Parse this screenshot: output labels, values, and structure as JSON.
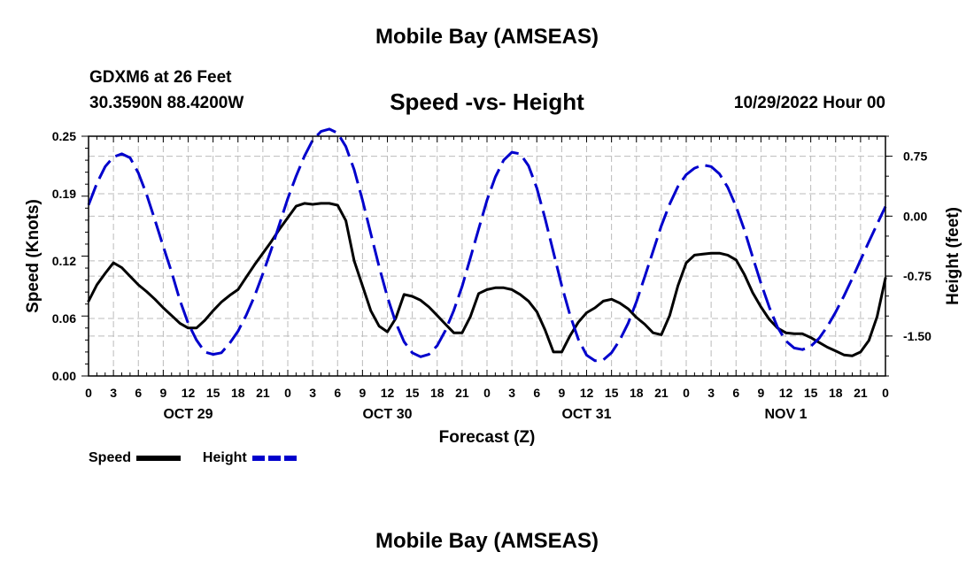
{
  "header": {
    "title": "Mobile Bay (AMSEAS)",
    "station": "GDXM6 at 26 Feet",
    "coords": "30.3590N  88.4200W",
    "subtitle": "Speed -vs- Height",
    "datetime": "10/29/2022 Hour 00"
  },
  "footer": {
    "title": "Mobile Bay (AMSEAS)"
  },
  "legend": {
    "speed_label": "Speed",
    "height_label": "Height"
  },
  "chart_data": {
    "type": "line",
    "title": "Speed -vs- Height",
    "xlabel": "Forecast (Z)",
    "ylabel": "Speed (Knots)",
    "y2label": "Height (feet)",
    "xlim": [
      0,
      96
    ],
    "ylim": [
      0,
      0.25
    ],
    "y2lim": [
      -2.0,
      1.0
    ],
    "xticks": [
      0,
      3,
      6,
      9,
      12,
      15,
      18,
      21,
      24,
      27,
      30,
      33,
      36,
      39,
      42,
      45,
      48,
      51,
      54,
      57,
      60,
      63,
      66,
      69,
      72,
      75,
      78,
      81,
      84,
      87,
      90,
      93,
      96
    ],
    "xtick_labels": [
      "0",
      "3",
      "6",
      "9",
      "12",
      "15",
      "18",
      "21",
      "0",
      "3",
      "6",
      "9",
      "12",
      "15",
      "18",
      "21",
      "0",
      "3",
      "6",
      "9",
      "12",
      "15",
      "18",
      "21",
      "0",
      "3",
      "6",
      "9",
      "12",
      "15",
      "18",
      "21",
      "0"
    ],
    "day_labels": [
      {
        "label": "OCT 29",
        "hour": 12
      },
      {
        "label": "OCT 30",
        "hour": 36
      },
      {
        "label": "OCT 31",
        "hour": 60
      },
      {
        "label": "NOV 1",
        "hour": 84
      }
    ],
    "yticks": [
      0.0,
      0.06,
      0.12,
      0.19,
      0.25
    ],
    "ytick_labels": [
      "0.00",
      "0.06",
      "0.12",
      "0.19",
      "0.25"
    ],
    "y2ticks": [
      -1.5,
      -0.75,
      0.0,
      0.75
    ],
    "y2tick_labels": [
      "-1.50",
      "-0.75",
      "0.00",
      "0.75"
    ],
    "colors": {
      "speed": "#000000",
      "height": "#0000cc",
      "grid": "#bbbbbb"
    },
    "series": [
      {
        "name": "Speed",
        "axis": "left",
        "style": "solid",
        "x": [
          0,
          1,
          2,
          3,
          4,
          5,
          6,
          7,
          8,
          9,
          10,
          11,
          12,
          13,
          14,
          15,
          16,
          17,
          18,
          19,
          20,
          21,
          22,
          23,
          24,
          25,
          26,
          27,
          28,
          29,
          30,
          31,
          32,
          33,
          34,
          35,
          36,
          37,
          38,
          39,
          40,
          41,
          42,
          43,
          44,
          45,
          46,
          47,
          48,
          49,
          50,
          51,
          52,
          53,
          54,
          55,
          56,
          57,
          58,
          59,
          60,
          61,
          62,
          63,
          64,
          65,
          66,
          67,
          68,
          69,
          70,
          71,
          72,
          73,
          74,
          75,
          76,
          77,
          78,
          79,
          80,
          81,
          82,
          83,
          84,
          85,
          86,
          87,
          88,
          89,
          90,
          91,
          92,
          93,
          94,
          95,
          96
        ],
        "values": [
          0.078,
          0.095,
          0.107,
          0.118,
          0.113,
          0.104,
          0.095,
          0.088,
          0.08,
          0.071,
          0.063,
          0.055,
          0.05,
          0.05,
          0.058,
          0.068,
          0.077,
          0.084,
          0.09,
          0.103,
          0.116,
          0.128,
          0.14,
          0.153,
          0.165,
          0.177,
          0.18,
          0.179,
          0.18,
          0.18,
          0.178,
          0.162,
          0.12,
          0.094,
          0.068,
          0.052,
          0.046,
          0.06,
          0.085,
          0.083,
          0.079,
          0.072,
          0.063,
          0.054,
          0.045,
          0.045,
          0.062,
          0.086,
          0.09,
          0.092,
          0.092,
          0.09,
          0.085,
          0.078,
          0.067,
          0.048,
          0.025,
          0.025,
          0.042,
          0.056,
          0.066,
          0.071,
          0.078,
          0.08,
          0.076,
          0.07,
          0.061,
          0.054,
          0.045,
          0.043,
          0.063,
          0.094,
          0.118,
          0.126,
          0.127,
          0.128,
          0.128,
          0.126,
          0.121,
          0.106,
          0.087,
          0.072,
          0.059,
          0.05,
          0.045,
          0.044,
          0.044,
          0.04,
          0.035,
          0.03,
          0.026,
          0.022,
          0.021,
          0.025,
          0.037,
          0.062,
          0.102
        ]
      },
      {
        "name": "Height",
        "axis": "right",
        "style": "dashed",
        "x": [
          0,
          1,
          2,
          3,
          4,
          5,
          6,
          7,
          8,
          9,
          10,
          11,
          12,
          13,
          14,
          15,
          16,
          17,
          18,
          19,
          20,
          21,
          22,
          23,
          24,
          25,
          26,
          27,
          28,
          29,
          30,
          31,
          32,
          33,
          34,
          35,
          36,
          37,
          38,
          39,
          40,
          41,
          42,
          43,
          44,
          45,
          46,
          47,
          48,
          49,
          50,
          51,
          52,
          53,
          54,
          55,
          56,
          57,
          58,
          59,
          60,
          61,
          62,
          63,
          64,
          65,
          66,
          67,
          68,
          69,
          70,
          71,
          72,
          73,
          74,
          75,
          76,
          77,
          78,
          79,
          80,
          81,
          82,
          83,
          84,
          85,
          86,
          87,
          88,
          89,
          90,
          91,
          92,
          93,
          94,
          95,
          96
        ],
        "values": [
          0.14,
          0.41,
          0.62,
          0.74,
          0.78,
          0.73,
          0.54,
          0.27,
          -0.05,
          -0.38,
          -0.7,
          -1.05,
          -1.34,
          -1.55,
          -1.7,
          -1.73,
          -1.71,
          -1.59,
          -1.44,
          -1.24,
          -1.0,
          -0.72,
          -0.42,
          -0.1,
          0.22,
          0.5,
          0.75,
          0.95,
          1.06,
          1.09,
          1.04,
          0.87,
          0.58,
          0.2,
          -0.22,
          -0.63,
          -1.01,
          -1.33,
          -1.57,
          -1.71,
          -1.76,
          -1.73,
          -1.62,
          -1.43,
          -1.18,
          -0.88,
          -0.52,
          -0.16,
          0.2,
          0.49,
          0.7,
          0.8,
          0.78,
          0.63,
          0.35,
          -0.03,
          -0.45,
          -0.87,
          -1.24,
          -1.54,
          -1.74,
          -1.81,
          -1.8,
          -1.71,
          -1.55,
          -1.34,
          -1.07,
          -0.76,
          -0.44,
          -0.12,
          0.15,
          0.37,
          0.52,
          0.6,
          0.64,
          0.62,
          0.53,
          0.36,
          0.12,
          -0.17,
          -0.51,
          -0.84,
          -1.14,
          -1.39,
          -1.56,
          -1.65,
          -1.67,
          -1.63,
          -1.53,
          -1.38,
          -1.2,
          -1.0,
          -0.78,
          -0.55,
          -0.32,
          -0.1,
          0.12
        ]
      }
    ]
  }
}
